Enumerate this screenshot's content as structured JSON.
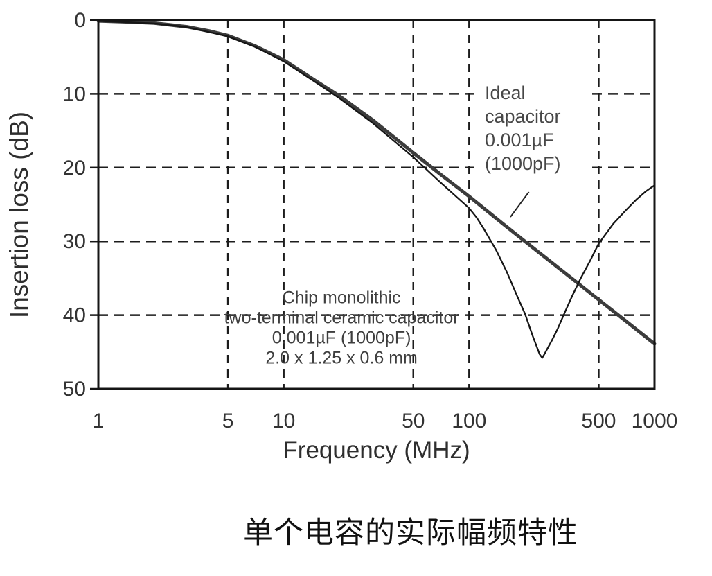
{
  "figure": {
    "caption": "单个电容的实际幅频特性"
  },
  "chart_data": {
    "type": "line",
    "title": "",
    "xlabel": "Frequency (MHz)",
    "ylabel": "Insertion loss (dB)",
    "x_scale": "log",
    "x_range": [
      1,
      1000
    ],
    "y_range": [
      0,
      50
    ],
    "y_inverted": true,
    "x_ticks": [
      1,
      5,
      10,
      50,
      100,
      500,
      1000
    ],
    "y_ticks": [
      0,
      10,
      20,
      30,
      40,
      50
    ],
    "x_gridlines": [
      5,
      10,
      50,
      100,
      500
    ],
    "y_gridlines": [
      10,
      20,
      30,
      40
    ],
    "grid_style": "dashed",
    "legend_position": "none",
    "series": [
      {
        "id": "ideal-capacitor",
        "name": "Ideal capacitor 0.001µF (1000pF)",
        "style": "thick",
        "color": "#3c3c3c",
        "points": [
          [
            1,
            0.1
          ],
          [
            1.5,
            0.25
          ],
          [
            2,
            0.4
          ],
          [
            3,
            0.9
          ],
          [
            4,
            1.5
          ],
          [
            5,
            2.1
          ],
          [
            7,
            3.5
          ],
          [
            10,
            5.4
          ],
          [
            15,
            8.3
          ],
          [
            20,
            10.3
          ],
          [
            30,
            13.5
          ],
          [
            50,
            18.0
          ],
          [
            70,
            20.9
          ],
          [
            100,
            23.9
          ],
          [
            150,
            27.5
          ],
          [
            200,
            30.0
          ],
          [
            300,
            33.5
          ],
          [
            500,
            37.9
          ],
          [
            700,
            40.8
          ],
          [
            1000,
            43.9
          ]
        ]
      },
      {
        "id": "chip-capacitor",
        "name": "Chip monolithic two-terminal ceramic capacitor 0.001µF (1000pF) 2.0 x 1.25 x 0.6 mm",
        "style": "thin",
        "color": "#161616",
        "points": [
          [
            1,
            0.12
          ],
          [
            2,
            0.45
          ],
          [
            3,
            0.95
          ],
          [
            5,
            2.2
          ],
          [
            7,
            3.6
          ],
          [
            10,
            5.6
          ],
          [
            15,
            8.5
          ],
          [
            20,
            10.6
          ],
          [
            30,
            13.9
          ],
          [
            50,
            18.6
          ],
          [
            70,
            22.0
          ],
          [
            100,
            25.5
          ],
          [
            110,
            26.8
          ],
          [
            120,
            28.3
          ],
          [
            140,
            31.2
          ],
          [
            160,
            34.2
          ],
          [
            180,
            37.2
          ],
          [
            200,
            39.8
          ],
          [
            220,
            42.8
          ],
          [
            240,
            45.3
          ],
          [
            248,
            45.8
          ],
          [
            256,
            45.2
          ],
          [
            280,
            43.4
          ],
          [
            300,
            41.9
          ],
          [
            330,
            39.5
          ],
          [
            360,
            37.4
          ],
          [
            400,
            35.0
          ],
          [
            450,
            32.6
          ],
          [
            500,
            30.3
          ],
          [
            600,
            27.6
          ],
          [
            700,
            25.8
          ],
          [
            800,
            24.3
          ],
          [
            900,
            23.2
          ],
          [
            1000,
            22.4
          ]
        ]
      }
    ],
    "annotations": [
      {
        "id": "ideal-capacitor-label",
        "lines": [
          "Ideal",
          "capacitor",
          "0.001µF",
          "(1000pF)"
        ],
        "f": 121.5,
        "db": 10.7,
        "leader": [
          [
            210,
            23.3
          ],
          [
            167,
            26.7
          ]
        ]
      },
      {
        "id": "chip-capacitor-label",
        "lines": [
          "Chip monolithic",
          "two-terminal ceramic capacitor",
          "0.001µF (1000pF)",
          "2.0 x 1.25 x 0.6 mm"
        ],
        "f": 20.5,
        "db": 38.4
      }
    ]
  }
}
